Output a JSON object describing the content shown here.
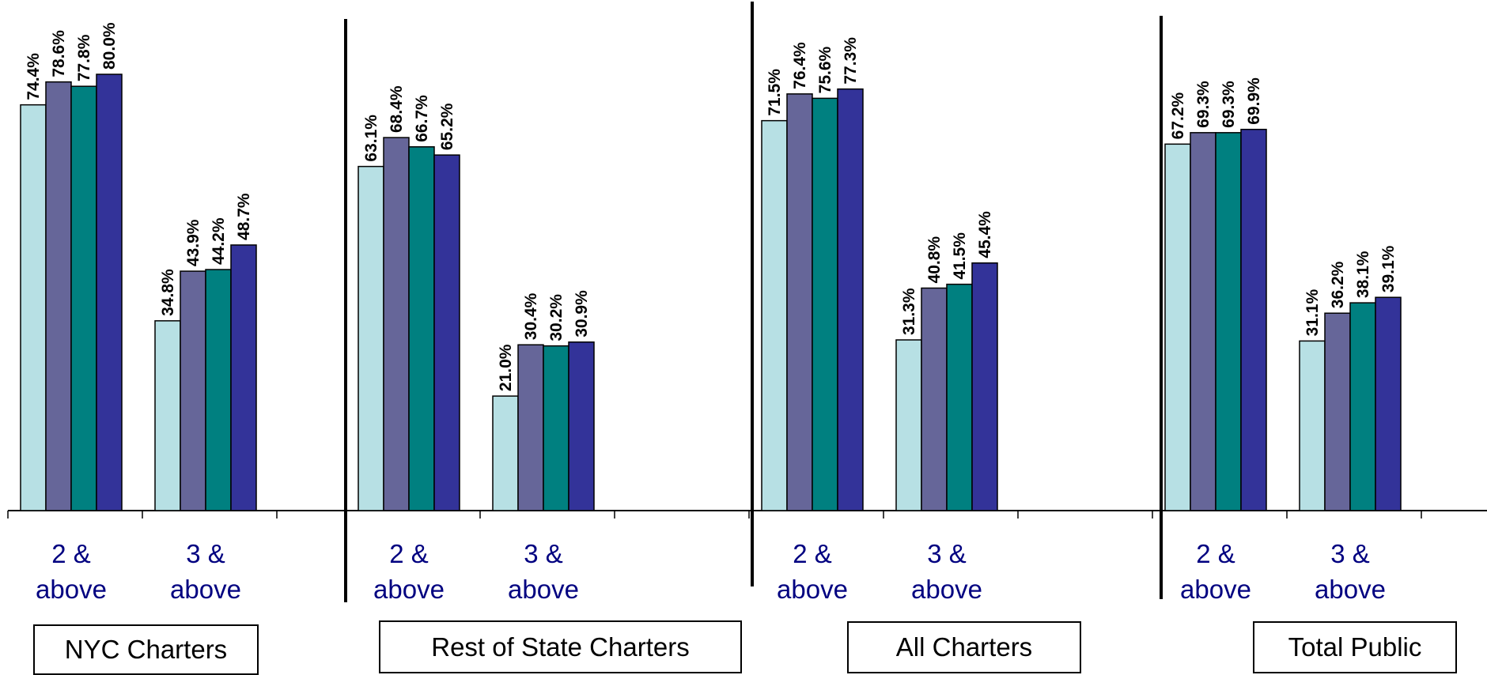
{
  "chart_data": {
    "type": "bar",
    "colors": [
      "#B7E0E4",
      "#666699",
      "#008080",
      "#333399"
    ],
    "groups": [
      {
        "title": "NYC Charters",
        "categories": [
          {
            "label": [
              "2 &",
              "above"
            ],
            "values": [
              74.4,
              78.6,
              77.8,
              80.0
            ],
            "labels": [
              "74.4%",
              "78.6%",
              "77.8%",
              "80.0%"
            ]
          },
          {
            "label": [
              "3 &",
              "above"
            ],
            "values": [
              34.8,
              43.9,
              44.2,
              48.7
            ],
            "labels": [
              "34.8%",
              "43.9%",
              "44.2%",
              "48.7%"
            ]
          }
        ]
      },
      {
        "title": "Rest of State Charters",
        "categories": [
          {
            "label": [
              "2 &",
              "above"
            ],
            "values": [
              63.1,
              68.4,
              66.7,
              65.2
            ],
            "labels": [
              "63.1%",
              "68.4%",
              "66.7%",
              "65.2%"
            ]
          },
          {
            "label": [
              "3 &",
              "above"
            ],
            "values": [
              21.0,
              30.4,
              30.2,
              30.9
            ],
            "labels": [
              "21.0%",
              "30.4%",
              "30.2%",
              "30.9%"
            ]
          }
        ]
      },
      {
        "title": "All Charters",
        "categories": [
          {
            "label": [
              "2 &",
              "above"
            ],
            "values": [
              71.5,
              76.4,
              75.6,
              77.3
            ],
            "labels": [
              "71.5%",
              "76.4%",
              "75.6%",
              "77.3%"
            ]
          },
          {
            "label": [
              "3 &",
              "above"
            ],
            "values": [
              31.3,
              40.8,
              41.5,
              45.4
            ],
            "labels": [
              "31.3%",
              "40.8%",
              "41.5%",
              "45.4%"
            ]
          }
        ]
      },
      {
        "title": "Total Public",
        "categories": [
          {
            "label": [
              "2 &",
              "above"
            ],
            "values": [
              67.2,
              69.3,
              69.3,
              69.9
            ],
            "labels": [
              "67.2%",
              "69.3%",
              "69.3%",
              "69.9%"
            ]
          },
          {
            "label": [
              "3 &",
              "above"
            ],
            "values": [
              31.1,
              36.2,
              38.1,
              39.1
            ],
            "labels": [
              "31.1%",
              "36.2%",
              "38.1%",
              "39.1%"
            ]
          }
        ]
      }
    ],
    "ylim": [
      0,
      100
    ],
    "grid": false,
    "legend": "none"
  }
}
